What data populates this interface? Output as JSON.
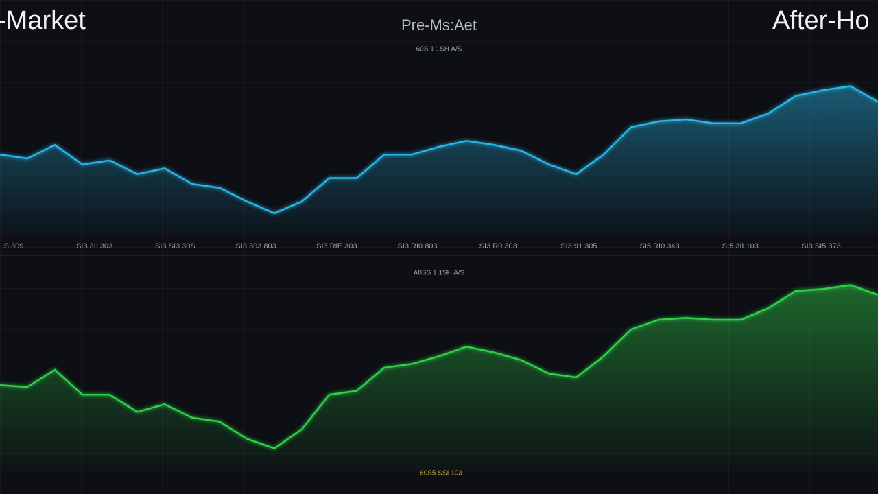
{
  "header": {
    "left": "-Market",
    "center": "Pre-Ms:Aet",
    "right": "After-Ho"
  },
  "chart_data": [
    {
      "type": "area",
      "subtitle": "60S 1 1SH A/S",
      "ylim": [
        0,
        100
      ],
      "x_labels": [
        "S 309",
        "SI3 3II 303",
        "SI3 SI3 30S",
        "SI3 303 803",
        "SI3 RIE 303",
        "SI3 RI0 803",
        "SI3 R0 303",
        "SI3 91 305",
        "SI5 RI0 343",
        "SI5 3II 103",
        "SI3 SI5 373"
      ],
      "series": [
        {
          "color": "#29b6e8",
          "values": [
            42,
            40,
            47,
            37,
            39,
            32,
            35,
            27,
            25,
            18,
            12,
            18,
            30,
            30,
            42,
            42,
            46,
            49,
            47,
            44,
            37,
            32,
            42,
            56,
            59,
            60,
            58,
            58,
            63,
            72,
            75,
            77,
            69
          ]
        }
      ]
    },
    {
      "type": "area",
      "subtitle": "A0SS 1 1SH A/S",
      "footer": "60S5 SSI 103",
      "ylim": [
        0,
        100
      ],
      "series": [
        {
          "color": "#2fd14a",
          "values": [
            46,
            45,
            54,
            41,
            41,
            32,
            36,
            29,
            27,
            18,
            13,
            23,
            41,
            43,
            55,
            57,
            61,
            66,
            63,
            59,
            52,
            50,
            61,
            75,
            80,
            81,
            80,
            80,
            86,
            95,
            96,
            98,
            93
          ]
        }
      ]
    }
  ]
}
